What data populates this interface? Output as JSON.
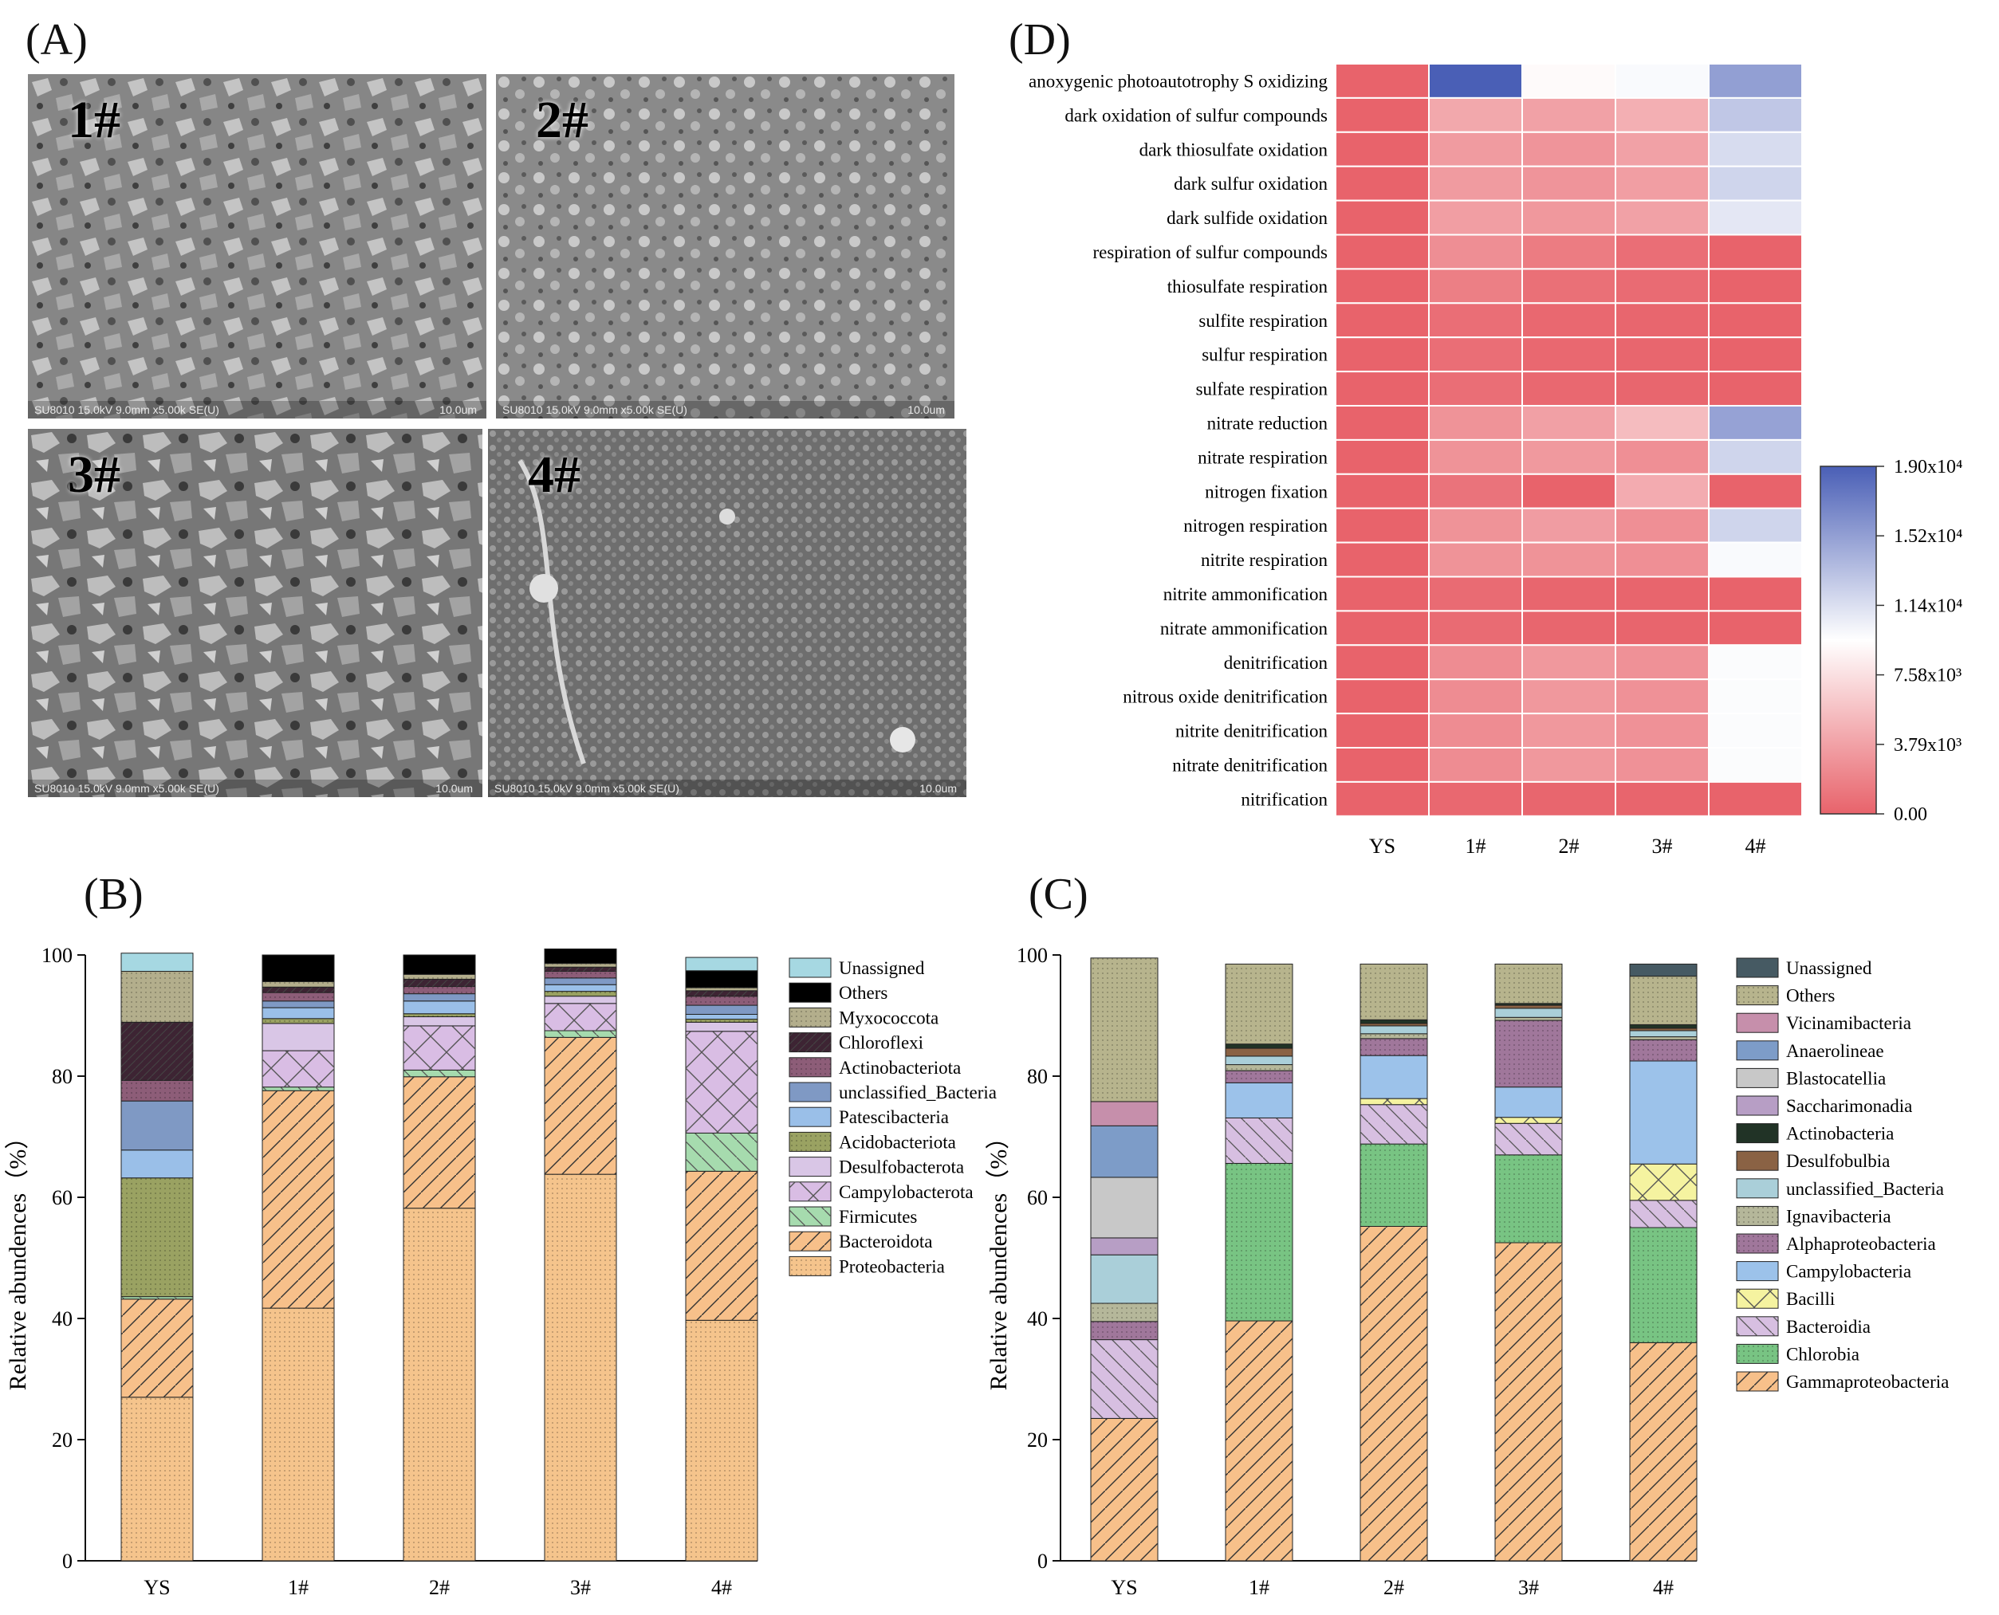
{
  "panels": {
    "A": "(A)",
    "B": "(B)",
    "C": "(C)",
    "D": "(D)"
  },
  "sem": [
    {
      "label": "1#",
      "meta": "SU8010 15.0kV 9.0mm x5.00k SE(U)",
      "scale": "10.0um"
    },
    {
      "label": "2#",
      "meta": "SU8010 15.0kV 9.0mm x5.00k SE(U)",
      "scale": "10.0um"
    },
    {
      "label": "3#",
      "meta": "SU8010 15.0kV 9.0mm x5.00k SE(U)",
      "scale": "10.0um"
    },
    {
      "label": "4#",
      "meta": "SU8010 15.0kV 9.0mm x5.00k SE(U)",
      "scale": "10.0um"
    }
  ],
  "chart_data": [
    {
      "id": "B",
      "type": "bar",
      "stacked": true,
      "categories": [
        "YS",
        "1#",
        "2#",
        "3#",
        "4#"
      ],
      "ylabel": "Relative abundences（%）",
      "ylim": [
        0,
        100
      ],
      "yticks": [
        "0",
        "20",
        "40",
        "60",
        "80",
        "100"
      ],
      "series": [
        {
          "name": "Proteobacteria",
          "color": "#f5c48c",
          "values": [
            27,
            41.7,
            58.2,
            63.8,
            39.7
          ]
        },
        {
          "name": "Bacteroidota",
          "color": "#f7c08a",
          "values": [
            16.2,
            35.9,
            21.7,
            22.6,
            24.6
          ]
        },
        {
          "name": "Firmicutes",
          "color": "#a6dbae",
          "values": [
            0.4,
            0.6,
            1.1,
            1.1,
            6.3
          ]
        },
        {
          "name": "Campylobacterota",
          "color": "#d9bde4",
          "values": [
            0,
            6,
            7.3,
            4.5,
            16.8
          ]
        },
        {
          "name": "Desulfobacterota",
          "color": "#d9c6e6",
          "values": [
            0,
            4.5,
            1.5,
            1.2,
            1.5
          ]
        },
        {
          "name": "Acidobacteriota",
          "color": "#9aa262",
          "values": [
            19.6,
            0.8,
            0.5,
            0.8,
            0.5
          ]
        },
        {
          "name": "Patescibacteria",
          "color": "#9abfe8",
          "values": [
            4.6,
            1.8,
            2.1,
            1.1,
            0.8
          ]
        },
        {
          "name": "unclassified_Bacteria",
          "color": "#7f99c4",
          "values": [
            8.1,
            1.1,
            1.2,
            1.1,
            1.5
          ]
        },
        {
          "name": "Actinobacteriota",
          "color": "#8d5d78",
          "values": [
            3.4,
            1.4,
            1.2,
            1.1,
            1.5
          ]
        },
        {
          "name": "Chloroflexi",
          "color": "#3d2433",
          "values": [
            9.6,
            0.9,
            1.2,
            0.7,
            0.9
          ]
        },
        {
          "name": "Myxococcota",
          "color": "#b3ae8c",
          "values": [
            8.4,
            0.9,
            0.8,
            0.6,
            0.5
          ]
        },
        {
          "name": "Others",
          "color": "#000000",
          "values": [
            0,
            4.4,
            3.2,
            2.4,
            2.8
          ]
        },
        {
          "name": "Unassigned",
          "color": "#a6d8e2",
          "values": [
            3,
            0,
            0,
            0,
            2.2
          ]
        }
      ]
    },
    {
      "id": "C",
      "type": "bar",
      "stacked": true,
      "categories": [
        "YS",
        "1#",
        "2#",
        "3#",
        "4#"
      ],
      "ylabel": "Relative abundences（%）",
      "ylim": [
        0,
        100
      ],
      "yticks": [
        "0",
        "20",
        "40",
        "60",
        "80",
        "100"
      ],
      "series": [
        {
          "name": "Gammaproteobacteria",
          "color": "#f7c08a",
          "values": [
            23.5,
            39.6,
            55.2,
            52.5,
            36
          ]
        },
        {
          "name": "Chlorobia",
          "color": "#78c483",
          "values": [
            0,
            26,
            13.6,
            14.5,
            19
          ]
        },
        {
          "name": "Bacteroidia",
          "color": "#d7bfe1",
          "values": [
            13,
            7.5,
            6.5,
            5.2,
            4.5
          ]
        },
        {
          "name": "Bacilli",
          "color": "#f5f3a0",
          "values": [
            0,
            0,
            1,
            1,
            6
          ]
        },
        {
          "name": "Campylobacteria",
          "color": "#9cc2ea",
          "values": [
            0,
            5.8,
            7.1,
            5,
            17
          ]
        },
        {
          "name": "Alphaproteobacteria",
          "color": "#a0779b",
          "values": [
            3,
            2,
            2.8,
            11,
            3.5
          ]
        },
        {
          "name": "Ignavibacteria",
          "color": "#b5b79a",
          "values": [
            3,
            1,
            0.8,
            0.5,
            0.5
          ]
        },
        {
          "name": "unclassified_Bacteria",
          "color": "#aacfd9",
          "values": [
            8,
            1.4,
            1.3,
            1.5,
            1
          ]
        },
        {
          "name": "Desulfobulbia",
          "color": "#8a6244",
          "values": [
            0,
            1.3,
            0.4,
            0.5,
            0.4
          ]
        },
        {
          "name": "Actinobacteria",
          "color": "#213326",
          "values": [
            0,
            0.7,
            0.6,
            0.3,
            0.6
          ]
        },
        {
          "name": "Saccharimonadia",
          "color": "#b79ec5",
          "values": [
            2.8,
            0,
            0,
            0,
            0
          ]
        },
        {
          "name": "Blastocatellia",
          "color": "#c8c8c8",
          "values": [
            10,
            0,
            0,
            0,
            0
          ]
        },
        {
          "name": "Anaerolineae",
          "color": "#7d9cc8",
          "values": [
            8.5,
            0,
            0,
            0,
            0
          ]
        },
        {
          "name": "Vicinamibacteria",
          "color": "#c68fab",
          "values": [
            4,
            0,
            0,
            0,
            0
          ]
        },
        {
          "name": "Others",
          "color": "#b7b48d",
          "values": [
            23.7,
            13.2,
            9.2,
            6.5,
            8
          ]
        },
        {
          "name": "Unassigned",
          "color": "#465a63",
          "values": [
            0,
            0,
            0,
            0,
            2
          ]
        }
      ]
    },
    {
      "id": "D",
      "type": "heatmap",
      "columns": [
        "YS",
        "1#",
        "2#",
        "3#",
        "4#"
      ],
      "rows": [
        "anoxygenic photoautotrophy S oxidizing",
        "dark oxidation of sulfur compounds",
        "dark thiosulfate oxidation",
        "dark sulfur oxidation",
        "dark sulfide oxidation",
        "respiration of sulfur compounds",
        "thiosulfate respiration",
        "sulfite respiration",
        "sulfur respiration",
        "sulfate respiration",
        "nitrate reduction",
        "nitrate respiration",
        "nitrogen fixation",
        "nitrogen respiration",
        "nitrite respiration",
        "nitrite ammonification",
        "nitrate ammonification",
        "denitrification",
        "nitrous oxide denitrification",
        "nitrite denitrification",
        "nitrate denitrification",
        "nitrification"
      ],
      "values": [
        [
          0,
          19000,
          9200,
          9800,
          15200
        ],
        [
          0,
          4200,
          3800,
          4600,
          12800
        ],
        [
          0,
          3400,
          3000,
          3800,
          11600
        ],
        [
          0,
          3400,
          3000,
          3600,
          12000
        ],
        [
          0,
          3600,
          3200,
          3800,
          10900
        ],
        [
          0,
          2600,
          1500,
          700,
          0
        ],
        [
          0,
          1700,
          800,
          500,
          0
        ],
        [
          0,
          700,
          300,
          200,
          0
        ],
        [
          0,
          700,
          300,
          200,
          0
        ],
        [
          0,
          700,
          300,
          200,
          0
        ],
        [
          0,
          2900,
          3700,
          5400,
          15000
        ],
        [
          0,
          2900,
          3300,
          2700,
          12000
        ],
        [
          0,
          1000,
          0,
          4400,
          0
        ],
        [
          0,
          2900,
          3500,
          2700,
          12000
        ],
        [
          0,
          2900,
          2900,
          2700,
          9800
        ],
        [
          0,
          500,
          200,
          100,
          0
        ],
        [
          0,
          500,
          200,
          100,
          0
        ],
        [
          0,
          2500,
          3200,
          2800,
          9700
        ],
        [
          0,
          2500,
          3200,
          2800,
          9700
        ],
        [
          0,
          2500,
          3200,
          2800,
          9700
        ],
        [
          0,
          2500,
          3200,
          2800,
          9700
        ],
        [
          0,
          300,
          200,
          100,
          0
        ]
      ],
      "colorbar": {
        "min": 0,
        "max": 19000,
        "tick_labels": [
          "0.00",
          "3.79x10³",
          "7.58x10³",
          "1.14x10⁴",
          "1.52x10⁴",
          "1.90x10⁴"
        ],
        "low_color": "#e8636b",
        "mid_color": "#ffffff",
        "high_color": "#4a5fb6"
      }
    }
  ]
}
